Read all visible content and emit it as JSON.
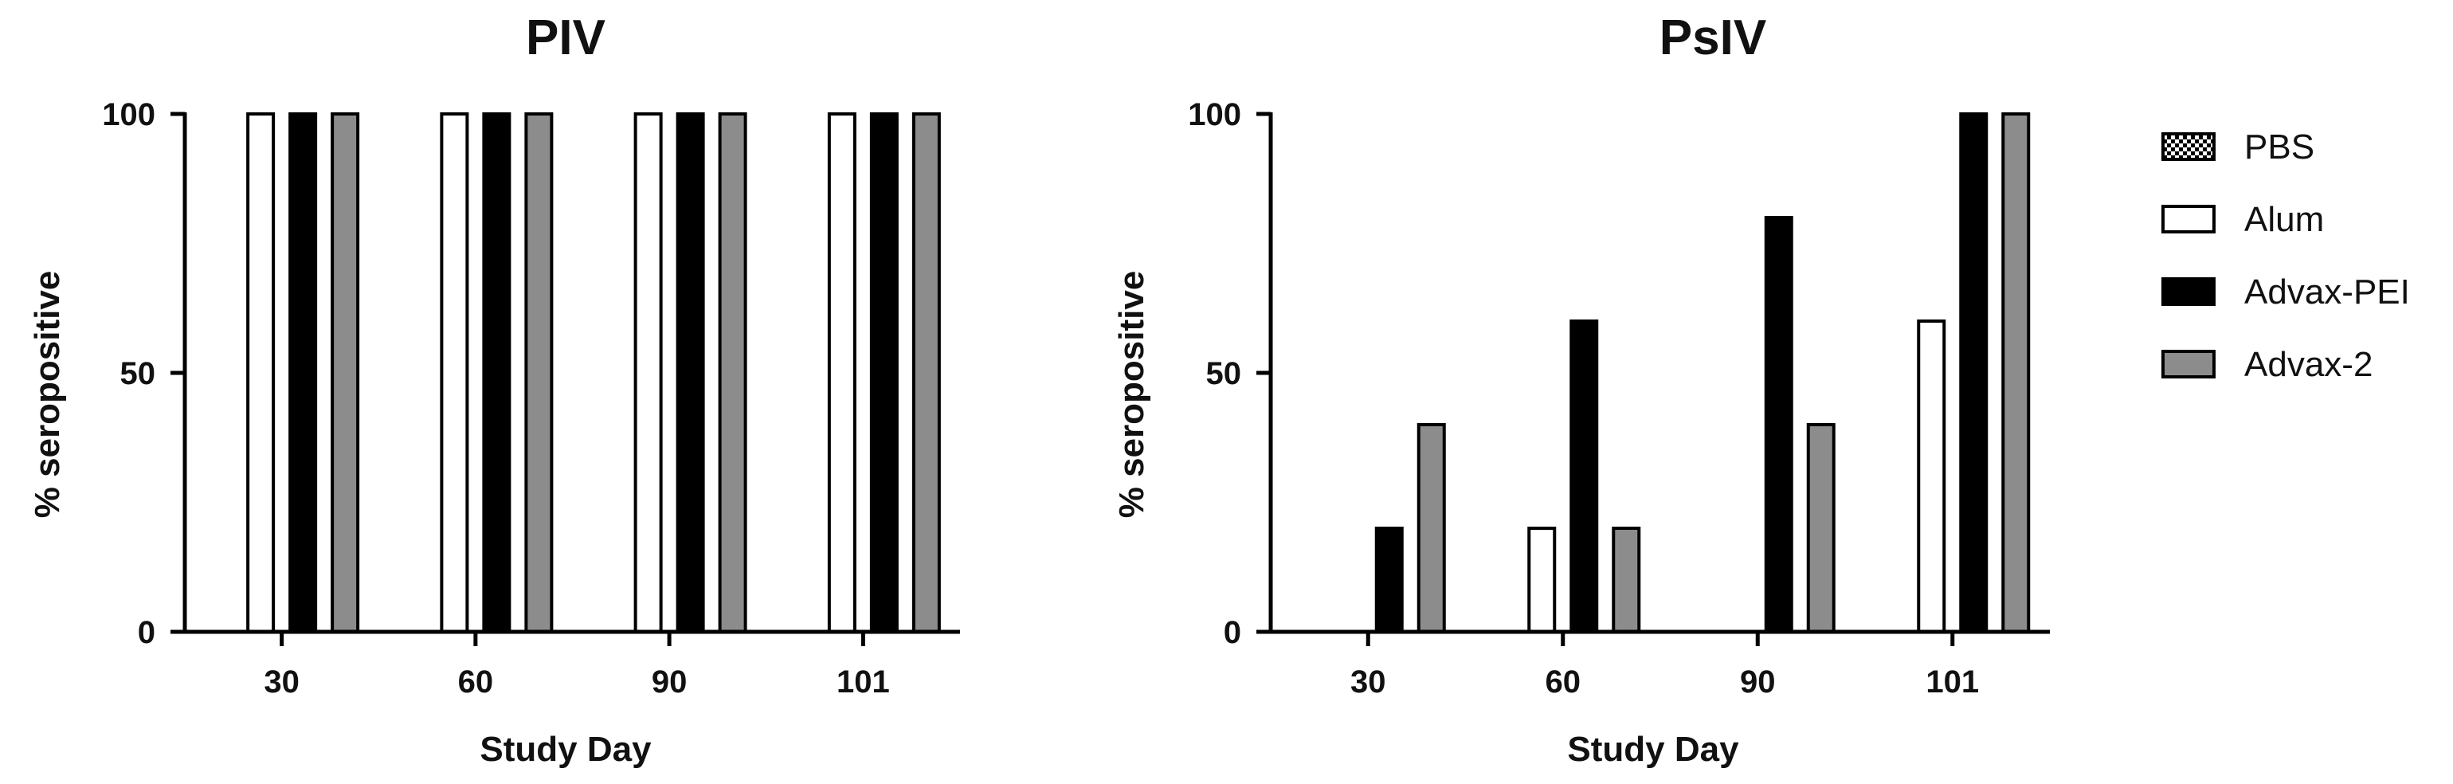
{
  "chart_data": [
    {
      "type": "bar",
      "title": "PIV",
      "xlabel": "Study Day",
      "ylabel": "% seropositive",
      "categories": [
        "30",
        "60",
        "90",
        "101"
      ],
      "ylim": [
        0,
        100
      ],
      "yticks": [
        "0",
        "50",
        "100"
      ],
      "series": [
        {
          "name": "PBS",
          "values": [
            0,
            0,
            0,
            0
          ]
        },
        {
          "name": "Alum",
          "values": [
            100,
            100,
            100,
            100
          ]
        },
        {
          "name": "Advax-PEI",
          "values": [
            100,
            100,
            100,
            100
          ]
        },
        {
          "name": "Advax-2",
          "values": [
            100,
            100,
            100,
            100
          ]
        }
      ],
      "grid": false
    },
    {
      "type": "bar",
      "title": "PsIV",
      "xlabel": "Study Day",
      "ylabel": "% seropositive",
      "categories": [
        "30",
        "60",
        "90",
        "101"
      ],
      "ylim": [
        0,
        100
      ],
      "yticks": [
        "0",
        "50",
        "100"
      ],
      "series": [
        {
          "name": "PBS",
          "values": [
            0,
            0,
            0,
            0
          ]
        },
        {
          "name": "Alum",
          "values": [
            0,
            20,
            0,
            60
          ]
        },
        {
          "name": "Advax-PEI",
          "values": [
            20,
            60,
            80,
            100
          ]
        },
        {
          "name": "Advax-2",
          "values": [
            40,
            20,
            40,
            100
          ]
        }
      ],
      "grid": false,
      "legend_position": "right"
    }
  ],
  "legend": {
    "items": [
      {
        "label": "PBS",
        "style": "checker"
      },
      {
        "label": "Alum",
        "style": "white"
      },
      {
        "label": "Advax-PEI",
        "style": "black"
      },
      {
        "label": "Advax-2",
        "style": "gray"
      }
    ]
  },
  "colors": {
    "PBS": "#000000",
    "Alum": "#ffffff",
    "Advax-PEI": "#000000",
    "Advax-2": "#8c8c8c",
    "bar_outline": "#000000"
  }
}
